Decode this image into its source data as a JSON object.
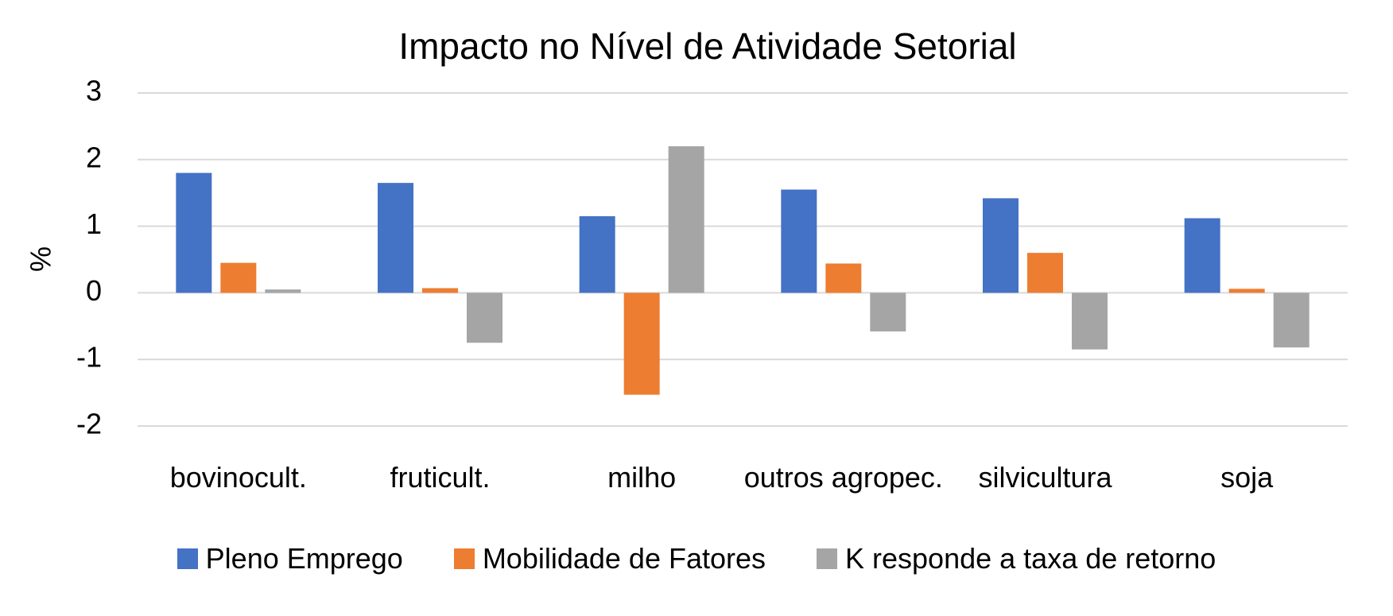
{
  "chart_data": {
    "type": "bar",
    "title": "Impacto no Nível de Atividade Setorial",
    "y_label": "%",
    "categories": [
      "bovinocult.",
      "fruticult.",
      "milho",
      "outros agropec.",
      "silvicultura",
      "soja"
    ],
    "series": [
      {
        "name": "Pleno Emprego",
        "color": "#4472c4",
        "values": [
          1.8,
          1.65,
          1.15,
          1.55,
          1.42,
          1.12
        ]
      },
      {
        "name": "Mobilidade de Fatores",
        "color": "#ed7d31",
        "values": [
          0.45,
          0.07,
          -1.53,
          0.44,
          0.6,
          0.06
        ]
      },
      {
        "name": "K responde a taxa de retorno",
        "color": "#a5a5a5",
        "values": [
          0.05,
          -0.75,
          2.2,
          -0.58,
          -0.85,
          -0.82
        ]
      }
    ],
    "ylim": [
      -2,
      3
    ],
    "yticks": [
      -2,
      -1,
      0,
      1,
      2,
      3
    ],
    "grid": true,
    "legend": "bottom"
  }
}
